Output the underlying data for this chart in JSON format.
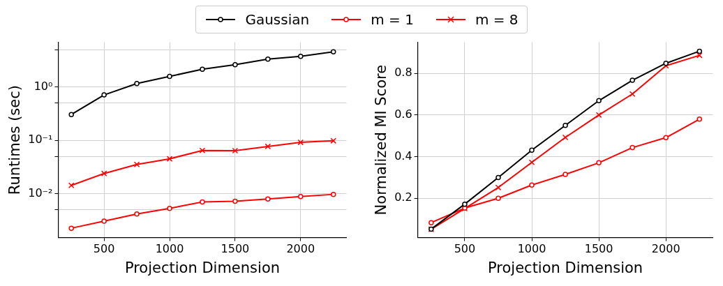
{
  "chart_data": [
    {
      "type": "line",
      "xlabel": "Projection Dimension",
      "ylabel": "Runtimes (sec)",
      "log": "y",
      "grid": true,
      "legend": "top",
      "xlim": [
        150,
        2350
      ],
      "xticks": [
        500,
        1000,
        1500,
        2000
      ],
      "ylim": [
        0.0015,
        6.9
      ],
      "yticks": [
        {
          "value": 0.005,
          "label": null
        },
        {
          "value": 0.01,
          "label": "10⁻²"
        },
        {
          "value": 0.05,
          "label": null
        },
        {
          "value": 0.1,
          "label": "10⁻¹"
        },
        {
          "value": 0.5,
          "label": null
        },
        {
          "value": 1,
          "label": "10⁰"
        },
        {
          "value": 5,
          "label": null
        }
      ],
      "x": [
        250,
        500,
        750,
        1000,
        1250,
        1500,
        1750,
        2000,
        2250
      ],
      "series": [
        {
          "name": "Gaussian",
          "color": "#000000",
          "marker": "circle",
          "values": [
            0.305,
            0.71,
            1.16,
            1.58,
            2.16,
            2.62,
            3.34,
            3.76,
            4.57
          ]
        },
        {
          "name": "m = 1",
          "color": "#ff0000",
          "marker": "circle",
          "values": [
            0.00225,
            0.00305,
            0.00416,
            0.0053,
            0.00698,
            0.00718,
            0.00792,
            0.00881,
            0.0097
          ]
        },
        {
          "name": "m = 8",
          "color": "#ff0000",
          "marker": "cross",
          "values": [
            0.0143,
            0.0239,
            0.0353,
            0.045,
            0.0645,
            0.064,
            0.0769,
            0.0916,
            0.098
          ]
        }
      ]
    },
    {
      "type": "line",
      "xlabel": "Projection Dimension",
      "ylabel": "Normalized MI Score",
      "grid": true,
      "xlim": [
        150,
        2350
      ],
      "xticks": [
        500,
        1000,
        1500,
        2000
      ],
      "ylim": [
        0.01,
        0.95
      ],
      "yticks": [
        0.2,
        0.4,
        0.6,
        0.8
      ],
      "x": [
        250,
        500,
        750,
        1000,
        1250,
        1500,
        1750,
        2000,
        2250
      ],
      "series": [
        {
          "name": "Gaussian",
          "color": "#000000",
          "marker": "circle",
          "values": [
            0.051,
            0.171,
            0.299,
            0.431,
            0.55,
            0.669,
            0.767,
            0.849,
            0.907
          ]
        },
        {
          "name": "m = 1",
          "color": "#ff0000",
          "marker": "circle",
          "values": [
            0.082,
            0.152,
            0.199,
            0.263,
            0.314,
            0.37,
            0.443,
            0.491,
            0.58
          ]
        },
        {
          "name": "m = 8",
          "color": "#ff0000",
          "marker": "cross",
          "values": [
            0.05,
            0.15,
            0.251,
            0.372,
            0.492,
            0.6,
            0.701,
            0.837,
            0.887
          ]
        }
      ]
    }
  ]
}
